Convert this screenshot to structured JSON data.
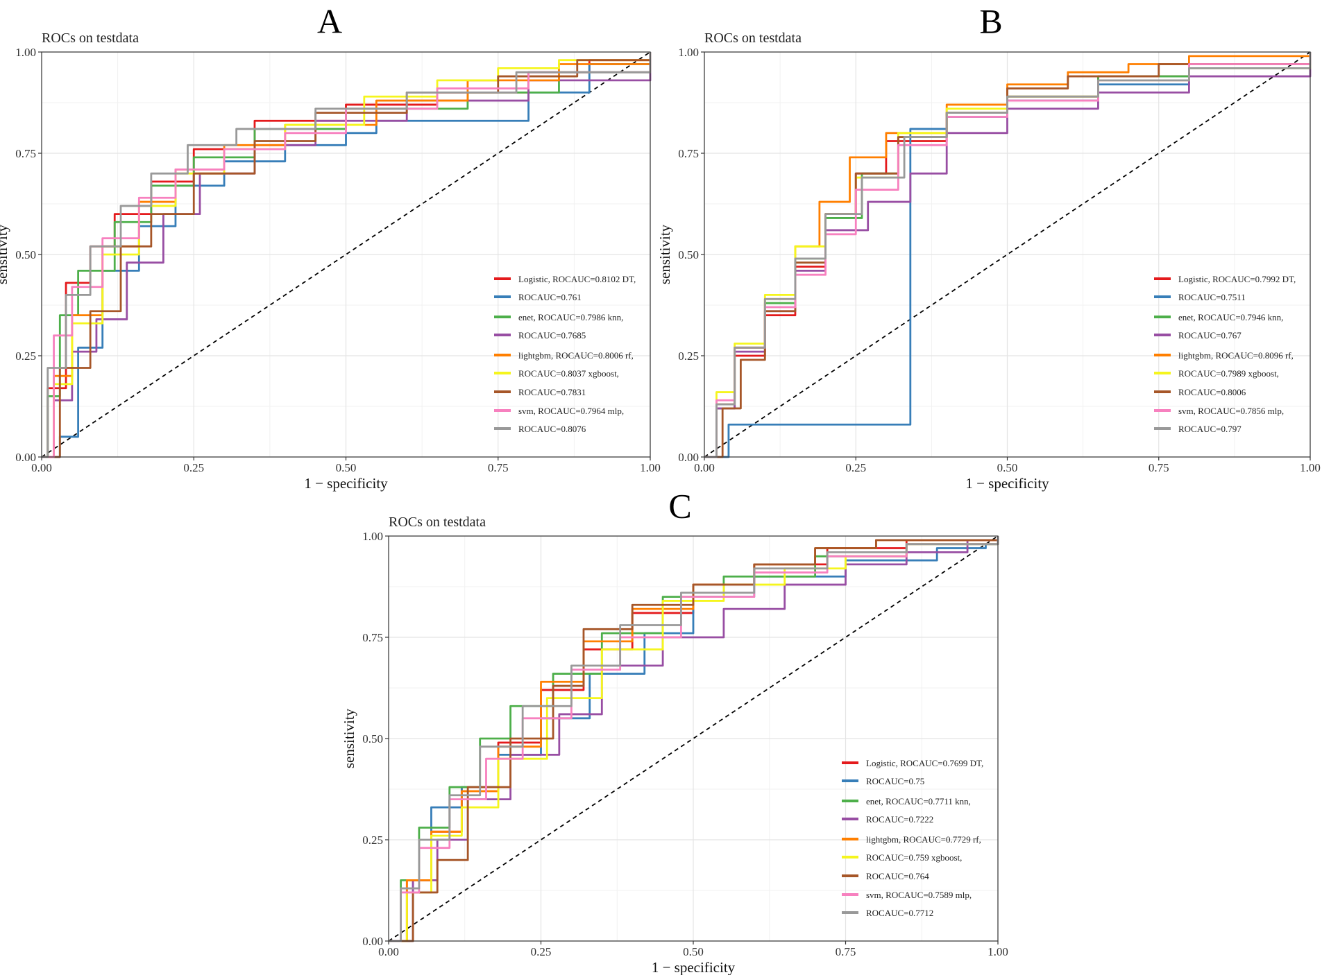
{
  "figure": {
    "panels": [
      "A",
      "B",
      "C"
    ]
  },
  "colors": {
    "Logistic": "#e41a1c",
    "DT": "#377eb8",
    "enet": "#4daf4a",
    "knn": "#984ea3",
    "lightgbm": "#ff7f00",
    "rf": "#f5f51e",
    "xgboost": "#a65628",
    "svm": "#f781bf",
    "mlp": "#999999",
    "reference": "#000000"
  },
  "chart_data": [
    {
      "type": "line",
      "panel": "A",
      "title": "ROCs on testdata",
      "xlabel": "1 − specificity",
      "ylabel": "sensitivity",
      "xlim": [
        0,
        1
      ],
      "ylim": [
        0,
        1
      ],
      "xticks": [
        "0.00",
        "0.25",
        "0.50",
        "0.75",
        "1.00"
      ],
      "yticks": [
        "0.00",
        "0.25",
        "0.50",
        "0.75",
        "1.00"
      ],
      "grid": true,
      "legend_position": "bottom-right",
      "legend_labels": [
        "Logistic, ROCAUC=0.8102 DT,",
        "ROCAUC=0.761",
        "enet, ROCAUC=0.7986 knn,",
        "ROCAUC=0.7685",
        "lightgbm, ROCAUC=0.8006 rf,",
        "ROCAUC=0.8037 xgboost,",
        "ROCAUC=0.7831",
        "svm, ROCAUC=0.7964 mlp,",
        "ROCAUC=0.8076"
      ],
      "series": [
        {
          "name": "Logistic",
          "auc": 0.8102,
          "x": [
            0,
            0.01,
            0.04,
            0.08,
            0.12,
            0.18,
            0.25,
            0.35,
            0.5,
            0.65,
            0.8,
            0.9,
            1
          ],
          "y": [
            0,
            0.17,
            0.43,
            0.52,
            0.6,
            0.68,
            0.76,
            0.83,
            0.87,
            0.9,
            0.95,
            0.98,
            1
          ]
        },
        {
          "name": "DT",
          "auc": 0.761,
          "x": [
            0,
            0.03,
            0.06,
            0.1,
            0.16,
            0.22,
            0.3,
            0.4,
            0.5,
            0.55,
            0.8,
            0.9,
            1
          ],
          "y": [
            0,
            0.05,
            0.27,
            0.46,
            0.57,
            0.67,
            0.73,
            0.77,
            0.8,
            0.83,
            0.9,
            0.97,
            1
          ]
        },
        {
          "name": "enet",
          "auc": 0.7986,
          "x": [
            0,
            0.01,
            0.03,
            0.06,
            0.12,
            0.18,
            0.25,
            0.35,
            0.5,
            0.7,
            0.85,
            1
          ],
          "y": [
            0,
            0.15,
            0.35,
            0.46,
            0.58,
            0.67,
            0.74,
            0.81,
            0.86,
            0.9,
            0.95,
            1
          ]
        },
        {
          "name": "knn",
          "auc": 0.7685,
          "x": [
            0,
            0.02,
            0.05,
            0.09,
            0.14,
            0.2,
            0.26,
            0.35,
            0.45,
            0.6,
            0.8,
            1
          ],
          "y": [
            0,
            0.14,
            0.26,
            0.34,
            0.48,
            0.6,
            0.7,
            0.77,
            0.83,
            0.88,
            0.93,
            1
          ]
        },
        {
          "name": "lightgbm",
          "auc": 0.8006,
          "x": [
            0,
            0.02,
            0.05,
            0.1,
            0.16,
            0.22,
            0.3,
            0.4,
            0.55,
            0.7,
            0.85,
            1
          ],
          "y": [
            0,
            0.2,
            0.35,
            0.52,
            0.63,
            0.71,
            0.77,
            0.82,
            0.88,
            0.93,
            0.97,
            1
          ]
        },
        {
          "name": "rf",
          "auc": 0.8037,
          "x": [
            0,
            0.02,
            0.05,
            0.1,
            0.16,
            0.22,
            0.3,
            0.4,
            0.53,
            0.65,
            0.75,
            0.85,
            1
          ],
          "y": [
            0,
            0.18,
            0.33,
            0.5,
            0.62,
            0.7,
            0.76,
            0.82,
            0.89,
            0.93,
            0.96,
            0.98,
            1
          ]
        },
        {
          "name": "xgboost",
          "auc": 0.7831,
          "x": [
            0,
            0.03,
            0.08,
            0.13,
            0.18,
            0.25,
            0.35,
            0.45,
            0.6,
            0.75,
            0.88,
            1
          ],
          "y": [
            0,
            0.22,
            0.36,
            0.52,
            0.6,
            0.7,
            0.78,
            0.85,
            0.9,
            0.94,
            0.98,
            1
          ]
        },
        {
          "name": "svm",
          "auc": 0.7964,
          "x": [
            0,
            0.02,
            0.05,
            0.1,
            0.16,
            0.22,
            0.3,
            0.4,
            0.5,
            0.65,
            0.8,
            1
          ],
          "y": [
            0,
            0.3,
            0.42,
            0.54,
            0.64,
            0.71,
            0.76,
            0.8,
            0.86,
            0.91,
            0.95,
            1
          ]
        },
        {
          "name": "mlp",
          "auc": 0.8076,
          "x": [
            0,
            0.01,
            0.04,
            0.08,
            0.13,
            0.18,
            0.24,
            0.32,
            0.45,
            0.6,
            0.78,
            1
          ],
          "y": [
            0,
            0.22,
            0.4,
            0.52,
            0.62,
            0.7,
            0.77,
            0.81,
            0.86,
            0.9,
            0.95,
            1
          ]
        }
      ]
    },
    {
      "type": "line",
      "panel": "B",
      "title": "ROCs on testdata",
      "xlabel": "1 − specificity",
      "ylabel": "sensitivity",
      "xlim": [
        0,
        1
      ],
      "ylim": [
        0,
        1
      ],
      "xticks": [
        "0.00",
        "0.25",
        "0.50",
        "0.75",
        "1.00"
      ],
      "yticks": [
        "0.00",
        "0.25",
        "0.50",
        "0.75",
        "1.00"
      ],
      "grid": true,
      "legend_position": "bottom-right",
      "legend_labels": [
        "Logistic, ROCAUC=0.7992 DT,",
        "ROCAUC=0.7511",
        "enet, ROCAUC=0.7946 knn,",
        "ROCAUC=0.767",
        "lightgbm, ROCAUC=0.8096 rf,",
        "ROCAUC=0.7989 xgboost,",
        "ROCAUC=0.8006",
        "svm, ROCAUC=0.7856 mlp,",
        "ROCAUC=0.797"
      ],
      "series": [
        {
          "name": "Logistic",
          "auc": 0.7992,
          "x": [
            0,
            0.02,
            0.05,
            0.1,
            0.15,
            0.2,
            0.25,
            0.3,
            0.4,
            0.5,
            0.65,
            0.8,
            1
          ],
          "y": [
            0,
            0.12,
            0.25,
            0.35,
            0.47,
            0.6,
            0.7,
            0.78,
            0.85,
            0.89,
            0.94,
            0.97,
            1
          ]
        },
        {
          "name": "DT",
          "auc": 0.7511,
          "x": [
            0,
            0.04,
            0.34,
            0.4,
            0.5,
            0.65,
            0.8,
            1
          ],
          "y": [
            0,
            0.08,
            0.81,
            0.84,
            0.88,
            0.92,
            0.96,
            1
          ]
        },
        {
          "name": "enet",
          "auc": 0.7946,
          "x": [
            0,
            0.02,
            0.05,
            0.1,
            0.15,
            0.2,
            0.26,
            0.32,
            0.4,
            0.5,
            0.65,
            0.8,
            1
          ],
          "y": [
            0,
            0.12,
            0.27,
            0.38,
            0.49,
            0.59,
            0.7,
            0.79,
            0.85,
            0.89,
            0.94,
            0.97,
            1
          ]
        },
        {
          "name": "knn",
          "auc": 0.767,
          "x": [
            0,
            0.02,
            0.05,
            0.1,
            0.15,
            0.2,
            0.27,
            0.34,
            0.4,
            0.5,
            0.65,
            0.8,
            1
          ],
          "y": [
            0,
            0.12,
            0.26,
            0.36,
            0.46,
            0.56,
            0.63,
            0.7,
            0.8,
            0.86,
            0.9,
            0.94,
            1
          ]
        },
        {
          "name": "lightgbm",
          "auc": 0.8096,
          "x": [
            0,
            0.02,
            0.05,
            0.1,
            0.15,
            0.19,
            0.24,
            0.3,
            0.4,
            0.5,
            0.6,
            0.7,
            0.8,
            1
          ],
          "y": [
            0,
            0.13,
            0.27,
            0.39,
            0.52,
            0.63,
            0.74,
            0.8,
            0.87,
            0.92,
            0.95,
            0.97,
            0.99,
            1
          ]
        },
        {
          "name": "rf",
          "auc": 0.7989,
          "x": [
            0,
            0.02,
            0.05,
            0.1,
            0.15,
            0.2,
            0.25,
            0.32,
            0.4,
            0.5,
            0.65,
            0.8,
            1
          ],
          "y": [
            0,
            0.16,
            0.28,
            0.4,
            0.52,
            0.6,
            0.69,
            0.8,
            0.86,
            0.89,
            0.93,
            0.96,
            1
          ]
        },
        {
          "name": "xgboost",
          "auc": 0.8006,
          "x": [
            0,
            0.03,
            0.06,
            0.1,
            0.15,
            0.2,
            0.25,
            0.32,
            0.4,
            0.5,
            0.6,
            0.75,
            1
          ],
          "y": [
            0,
            0.12,
            0.24,
            0.36,
            0.48,
            0.6,
            0.7,
            0.79,
            0.85,
            0.91,
            0.94,
            0.97,
            1
          ]
        },
        {
          "name": "svm",
          "auc": 0.7856,
          "x": [
            0,
            0.02,
            0.05,
            0.1,
            0.15,
            0.2,
            0.25,
            0.32,
            0.4,
            0.5,
            0.65,
            0.8,
            1
          ],
          "y": [
            0,
            0.14,
            0.27,
            0.37,
            0.45,
            0.55,
            0.66,
            0.77,
            0.84,
            0.88,
            0.93,
            0.97,
            1
          ]
        },
        {
          "name": "mlp",
          "auc": 0.797,
          "x": [
            0,
            0.02,
            0.05,
            0.1,
            0.15,
            0.2,
            0.26,
            0.33,
            0.4,
            0.5,
            0.65,
            0.8,
            1
          ],
          "y": [
            0,
            0.13,
            0.27,
            0.39,
            0.49,
            0.6,
            0.69,
            0.79,
            0.85,
            0.89,
            0.93,
            0.96,
            1
          ]
        }
      ]
    },
    {
      "type": "line",
      "panel": "C",
      "title": "ROCs on testdata",
      "xlabel": "1 − specificity",
      "ylabel": "sensitivity",
      "xlim": [
        0,
        1
      ],
      "ylim": [
        0,
        1
      ],
      "xticks": [
        "0.00",
        "0.25",
        "0.50",
        "0.75",
        "1.00"
      ],
      "yticks": [
        "0.00",
        "0.25",
        "0.50",
        "0.75",
        "1.00"
      ],
      "grid": true,
      "legend_position": "bottom-right",
      "legend_labels": [
        "Logistic, ROCAUC=0.7699 DT,",
        "ROCAUC=0.75",
        "enet, ROCAUC=0.7711 knn,",
        "ROCAUC=0.7222",
        "lightgbm, ROCAUC=0.7729 rf,",
        "ROCAUC=0.759 xgboost,",
        "ROCAUC=0.764",
        "svm, ROCAUC=0.7589 mlp,",
        "ROCAUC=0.7712"
      ],
      "series": [
        {
          "name": "Logistic",
          "auc": 0.7699,
          "x": [
            0,
            0.03,
            0.07,
            0.12,
            0.18,
            0.25,
            0.32,
            0.4,
            0.5,
            0.6,
            0.72,
            0.85,
            1
          ],
          "y": [
            0,
            0.15,
            0.27,
            0.38,
            0.49,
            0.62,
            0.72,
            0.81,
            0.88,
            0.93,
            0.97,
            0.99,
            1
          ]
        },
        {
          "name": "DT",
          "auc": 0.75,
          "x": [
            0,
            0.04,
            0.07,
            0.12,
            0.18,
            0.25,
            0.33,
            0.42,
            0.5,
            0.6,
            0.75,
            0.9,
            0.98,
            1
          ],
          "y": [
            0,
            0.15,
            0.33,
            0.38,
            0.46,
            0.55,
            0.66,
            0.76,
            0.85,
            0.9,
            0.94,
            0.97,
            0.98,
            1
          ]
        },
        {
          "name": "enet",
          "auc": 0.7711,
          "x": [
            0,
            0.02,
            0.05,
            0.1,
            0.15,
            0.2,
            0.27,
            0.35,
            0.45,
            0.55,
            0.7,
            0.85,
            1
          ],
          "y": [
            0,
            0.15,
            0.28,
            0.38,
            0.5,
            0.58,
            0.66,
            0.76,
            0.85,
            0.9,
            0.95,
            0.98,
            1
          ]
        },
        {
          "name": "knn",
          "auc": 0.7222,
          "x": [
            0,
            0.04,
            0.08,
            0.13,
            0.2,
            0.28,
            0.35,
            0.45,
            0.55,
            0.65,
            0.75,
            0.85,
            0.95,
            1
          ],
          "y": [
            0,
            0.15,
            0.25,
            0.35,
            0.46,
            0.56,
            0.68,
            0.75,
            0.82,
            0.88,
            0.93,
            0.96,
            0.99,
            1
          ]
        },
        {
          "name": "lightgbm",
          "auc": 0.7729,
          "x": [
            0,
            0.03,
            0.07,
            0.12,
            0.18,
            0.25,
            0.32,
            0.4,
            0.5,
            0.6,
            0.7,
            0.8,
            1
          ],
          "y": [
            0,
            0.15,
            0.27,
            0.37,
            0.48,
            0.64,
            0.74,
            0.82,
            0.88,
            0.93,
            0.97,
            0.99,
            1
          ]
        },
        {
          "name": "rf",
          "auc": 0.759,
          "x": [
            0,
            0.03,
            0.07,
            0.12,
            0.18,
            0.26,
            0.35,
            0.45,
            0.55,
            0.65,
            0.75,
            0.85,
            1
          ],
          "y": [
            0,
            0.12,
            0.26,
            0.33,
            0.45,
            0.6,
            0.72,
            0.84,
            0.88,
            0.92,
            0.95,
            0.98,
            1
          ]
        },
        {
          "name": "xgboost",
          "auc": 0.764,
          "x": [
            0,
            0.04,
            0.08,
            0.13,
            0.2,
            0.27,
            0.32,
            0.4,
            0.5,
            0.6,
            0.7,
            0.8,
            1
          ],
          "y": [
            0,
            0.12,
            0.2,
            0.38,
            0.5,
            0.63,
            0.77,
            0.83,
            0.88,
            0.93,
            0.97,
            0.99,
            1
          ]
        },
        {
          "name": "svm",
          "auc": 0.7589,
          "x": [
            0,
            0.02,
            0.05,
            0.1,
            0.16,
            0.22,
            0.3,
            0.38,
            0.48,
            0.6,
            0.72,
            0.85,
            1
          ],
          "y": [
            0,
            0.12,
            0.23,
            0.35,
            0.45,
            0.55,
            0.67,
            0.75,
            0.85,
            0.91,
            0.95,
            0.98,
            1
          ]
        },
        {
          "name": "mlp",
          "auc": 0.7712,
          "x": [
            0,
            0.02,
            0.05,
            0.1,
            0.15,
            0.22,
            0.3,
            0.38,
            0.48,
            0.6,
            0.72,
            0.85,
            1
          ],
          "y": [
            0,
            0.13,
            0.25,
            0.36,
            0.48,
            0.58,
            0.68,
            0.78,
            0.86,
            0.92,
            0.96,
            0.98,
            1
          ]
        }
      ]
    }
  ]
}
